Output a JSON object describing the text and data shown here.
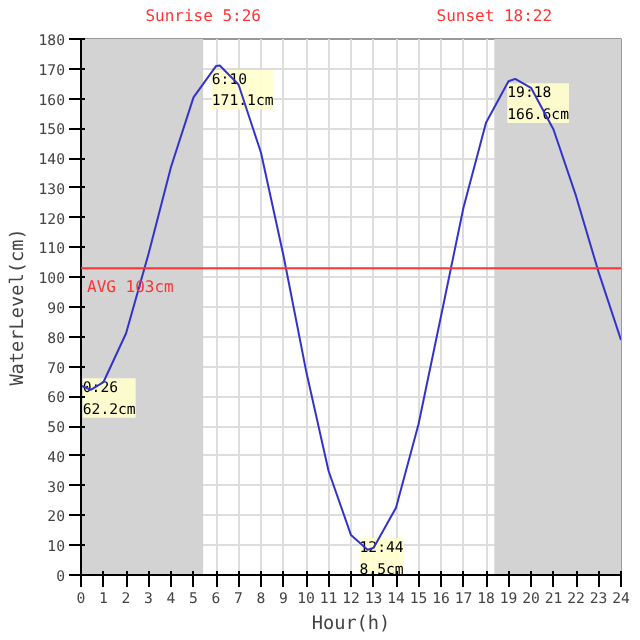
{
  "chart_data": {
    "type": "line",
    "xlabel": "Hour(h)",
    "ylabel": "WaterLevel(cm)",
    "x": [
      0,
      0.433,
      1,
      2,
      3,
      4,
      5,
      6,
      6.167,
      7,
      8,
      9,
      10,
      11,
      12,
      12.733,
      13,
      14,
      15,
      16,
      17,
      18,
      19,
      19.3,
      20,
      21,
      22,
      23,
      24
    ],
    "series": [
      {
        "color": "#3333cc",
        "values": [
          63.6,
          62.2,
          64.8,
          81.1,
          107.8,
          137.0,
          160.4,
          170.9,
          171.1,
          164.7,
          141.8,
          107.2,
          68.7,
          35.0,
          13.4,
          8.5,
          9.1,
          22.6,
          50.6,
          86.9,
          123.4,
          151.9,
          165.8,
          166.6,
          163.6,
          149.6,
          127.3,
          101.8,
          78.9
        ]
      }
    ],
    "xlim": [
      0,
      24
    ],
    "ylim": [
      0,
      180
    ],
    "xticks": [
      0,
      1,
      2,
      3,
      4,
      5,
      6,
      7,
      8,
      9,
      10,
      11,
      12,
      13,
      14,
      15,
      16,
      17,
      18,
      19,
      20,
      21,
      22,
      23,
      24
    ],
    "yticks": [
      0,
      10,
      20,
      30,
      40,
      50,
      60,
      70,
      80,
      90,
      100,
      110,
      120,
      130,
      140,
      150,
      160,
      170,
      180
    ],
    "grid": true,
    "marker": "none",
    "line_style": "solid",
    "ref_lines": [
      {
        "axis": "y",
        "value": 103,
        "label": "AVG 103cm",
        "color": "#ff3333"
      }
    ],
    "bands": [
      {
        "axis": "x",
        "from": 0,
        "to": 5.43,
        "label": "Sunrise 5:26",
        "color": "#d3d3d3"
      },
      {
        "axis": "x",
        "from": 18.37,
        "to": 24,
        "label": "Sunset 18:22",
        "color": "#d3d3d3"
      }
    ],
    "annotations": [
      {
        "text": "0:26\n62.2cm",
        "x": 0.433,
        "y": 62.2
      },
      {
        "text": "6:10\n171.1cm",
        "x": 6.167,
        "y": 171.1
      },
      {
        "text": "12:44\n8.5cm",
        "x": 12.733,
        "y": 8.5
      },
      {
        "text": "19:18\n166.6cm",
        "x": 19.3,
        "y": 166.6
      }
    ]
  }
}
